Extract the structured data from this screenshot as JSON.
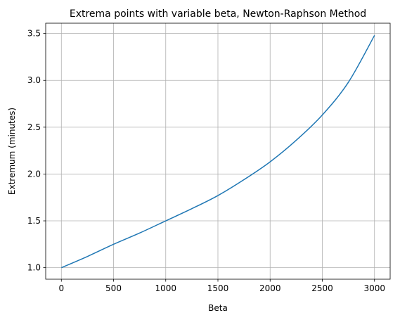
{
  "chart_data": {
    "type": "line",
    "title": "Extrema points with variable beta, Newton-Raphson Method",
    "xlabel": "Beta",
    "ylabel": "Extremum (minutes)",
    "xlim": [
      -150,
      3150
    ],
    "ylim": [
      0.877,
      3.61
    ],
    "grid": true,
    "x_ticks": [
      0,
      500,
      1000,
      1500,
      2000,
      2500,
      3000
    ],
    "x_tick_labels": [
      "0",
      "500",
      "1000",
      "1500",
      "2000",
      "2500",
      "3000"
    ],
    "y_ticks": [
      1.0,
      1.5,
      2.0,
      2.5,
      3.0,
      3.5
    ],
    "y_tick_labels": [
      "1.0",
      "1.5",
      "2.0",
      "2.5",
      "3.0",
      "3.5"
    ],
    "series": [
      {
        "color": "#1f77b4",
        "x": [
          0,
          250,
          500,
          750,
          1000,
          1250,
          1500,
          1750,
          2000,
          2250,
          2500,
          2750,
          3000
        ],
        "y": [
          1.0,
          1.12,
          1.25,
          1.37,
          1.5,
          1.63,
          1.77,
          1.94,
          2.13,
          2.36,
          2.63,
          2.98,
          3.48
        ]
      }
    ]
  }
}
